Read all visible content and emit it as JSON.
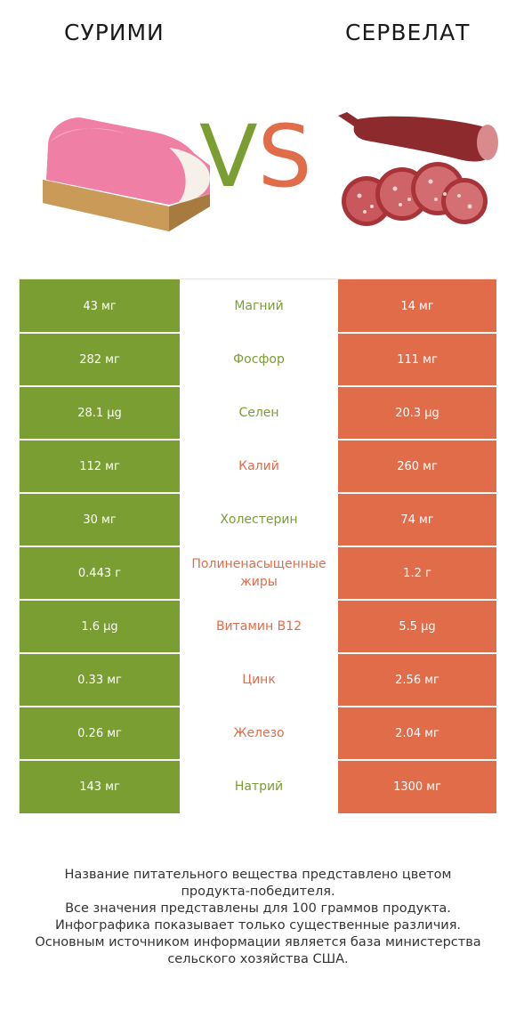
{
  "header": {
    "left_title": "СУРИМИ",
    "right_title": "СЕРВЕЛАТ",
    "vs_v": "V",
    "vs_s": "S"
  },
  "colors": {
    "left": "#7a9e32",
    "right": "#e06c4a"
  },
  "rows": [
    {
      "left": "43 мг",
      "name": "Магний",
      "right": "14 мг",
      "winner": "left"
    },
    {
      "left": "282 мг",
      "name": "Фосфор",
      "right": "111 мг",
      "winner": "left"
    },
    {
      "left": "28.1 µg",
      "name": "Селен",
      "right": "20.3 µg",
      "winner": "left"
    },
    {
      "left": "112 мг",
      "name": "Калий",
      "right": "260 мг",
      "winner": "right"
    },
    {
      "left": "30 мг",
      "name": "Холестерин",
      "right": "74 мг",
      "winner": "left"
    },
    {
      "left": "0.443 г",
      "name": "Полиненасыщенные жиры",
      "right": "1.2 г",
      "winner": "right"
    },
    {
      "left": "1.6 µg",
      "name": "Витамин B12",
      "right": "5.5 µg",
      "winner": "right"
    },
    {
      "left": "0.33 мг",
      "name": "Цинк",
      "right": "2.56 мг",
      "winner": "right"
    },
    {
      "left": "0.26 мг",
      "name": "Железо",
      "right": "2.04 мг",
      "winner": "right"
    },
    {
      "left": "143 мг",
      "name": "Натрий",
      "right": "1300 мг",
      "winner": "left"
    }
  ],
  "footer": {
    "line1": "Название питательного вещества представлено цветом",
    "line2": "продукта-победителя.",
    "line3": "Все значения представлены для 100 граммов продукта.",
    "line4": "Инфографика показывает только существенные различия.",
    "line5": "Основным источником информации является база министерства",
    "line6": "сельского хозяйства США."
  }
}
